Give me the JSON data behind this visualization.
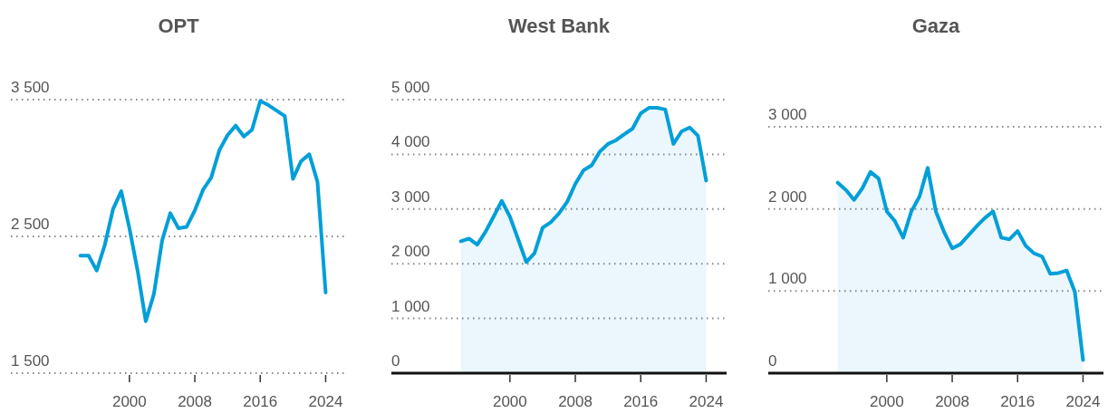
{
  "chart_data": [
    {
      "type": "line",
      "title": "OPT",
      "x": [
        1994,
        1995,
        1996,
        1997,
        1998,
        1999,
        2000,
        2001,
        2002,
        2003,
        2004,
        2005,
        2006,
        2007,
        2008,
        2009,
        2010,
        2011,
        2012,
        2013,
        2014,
        2015,
        2016,
        2017,
        2018,
        2019,
        2020,
        2021,
        2022,
        2023,
        2024
      ],
      "series": [
        {
          "color": "#009fd9",
          "values": [
            2360,
            2360,
            2250,
            2440,
            2700,
            2830,
            2560,
            2250,
            1880,
            2080,
            2470,
            2670,
            2560,
            2570,
            2690,
            2840,
            2930,
            3130,
            3240,
            3310,
            3230,
            3280,
            3490,
            3460,
            3420,
            3380,
            2920,
            3050,
            3100,
            2900,
            2090
          ]
        }
      ],
      "xlim": [
        1985.5,
        2026.5
      ],
      "xticks": [
        2000,
        2008,
        2016,
        2024
      ],
      "ylim": [
        1500,
        3500
      ],
      "yticks": [
        {
          "value": 1500,
          "label": "1 500"
        },
        {
          "value": 2500,
          "label": "2 500"
        },
        {
          "value": 3500,
          "label": "3 500"
        }
      ],
      "grid": "y"
    },
    {
      "type": "area",
      "title": "West Bank",
      "x": [
        1994,
        1995,
        1996,
        1997,
        1998,
        1999,
        2000,
        2001,
        2002,
        2003,
        2004,
        2005,
        2006,
        2007,
        2008,
        2009,
        2010,
        2011,
        2012,
        2013,
        2014,
        2015,
        2016,
        2017,
        2018,
        2019,
        2020,
        2021,
        2022,
        2023,
        2024
      ],
      "series": [
        {
          "color": "#009fd9",
          "values": [
            2410,
            2460,
            2350,
            2580,
            2860,
            3150,
            2860,
            2450,
            2030,
            2190,
            2660,
            2760,
            2920,
            3130,
            3460,
            3710,
            3800,
            4050,
            4190,
            4260,
            4370,
            4470,
            4750,
            4850,
            4850,
            4820,
            4190,
            4420,
            4490,
            4340,
            3520
          ]
        }
      ],
      "xlim": [
        1985.5,
        2026.5
      ],
      "xticks": [
        2000,
        2008,
        2016,
        2024
      ],
      "ylim": [
        0,
        5000
      ],
      "yticks": [
        0,
        {
          "value": 1000,
          "label": "1 000"
        },
        {
          "value": 2000,
          "label": "2 000"
        },
        {
          "value": 3000,
          "label": "3 000"
        },
        {
          "value": 4000,
          "label": "4 000"
        },
        {
          "value": 5000,
          "label": "5 000"
        }
      ],
      "grid": "y"
    },
    {
      "type": "area",
      "title": "Gaza",
      "x": [
        1994,
        1995,
        1996,
        1997,
        1998,
        1999,
        2000,
        2001,
        2002,
        2003,
        2004,
        2005,
        2006,
        2007,
        2008,
        2009,
        2010,
        2011,
        2012,
        2013,
        2014,
        2015,
        2016,
        2017,
        2018,
        2019,
        2020,
        2021,
        2022,
        2023,
        2024
      ],
      "series": [
        {
          "color": "#009fd9",
          "values": [
            2320,
            2230,
            2110,
            2250,
            2450,
            2370,
            1970,
            1850,
            1650,
            1970,
            2150,
            2500,
            1970,
            1720,
            1520,
            1570,
            1680,
            1790,
            1890,
            1970,
            1650,
            1630,
            1730,
            1550,
            1460,
            1420,
            1210,
            1220,
            1250,
            990,
            160
          ]
        }
      ],
      "xlim": [
        1985.5,
        2026.5
      ],
      "xticks": [
        2000,
        2008,
        2016,
        2024
      ],
      "ylim": [
        0,
        3000
      ],
      "yticks": [
        0,
        {
          "value": 1000,
          "label": "1 000"
        },
        {
          "value": 2000,
          "label": "2 000"
        },
        {
          "value": 3000,
          "label": "3 000"
        }
      ],
      "grid": "y"
    }
  ]
}
